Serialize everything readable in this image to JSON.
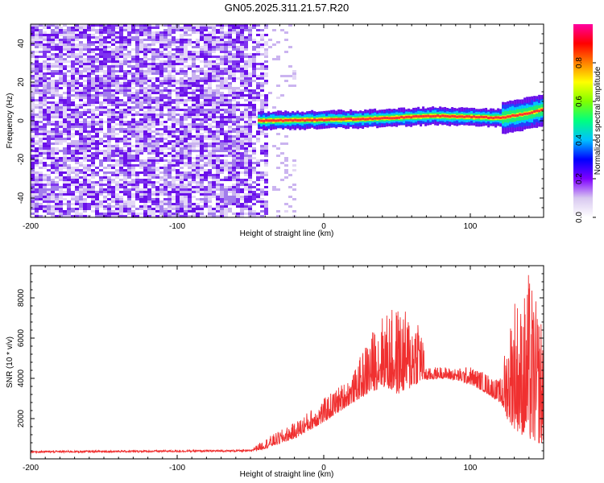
{
  "chart_data": [
    {
      "type": "heatmap",
      "title": "GN05.2025.311.21.57.R20",
      "xlabel": "Height of straight line (km)",
      "ylabel": "Frequency (Hz)",
      "xlim": [
        -200,
        150
      ],
      "ylim": [
        -50,
        50
      ],
      "x_ticks": [
        -200,
        -100,
        0,
        100
      ],
      "x_tick_labels": [
        "-200",
        "-100",
        "0",
        "100"
      ],
      "y_ticks": [
        -40,
        -20,
        0,
        20,
        40
      ],
      "y_tick_labels": [
        "-40",
        "-20",
        "0",
        "20",
        "40"
      ],
      "ridge": {
        "description": "dominant frequency track",
        "x": [
          -45,
          0,
          30,
          60,
          75,
          120,
          140,
          150
        ],
        "frequency": [
          0,
          0.5,
          1,
          2,
          2.5,
          1.5,
          4,
          6
        ]
      },
      "noise_region_x": [
        -200,
        -40
      ],
      "colorbar": {
        "label": "Normalized spectral amplitude",
        "range": [
          0,
          1
        ],
        "ticks": [
          0.0,
          0.2,
          0.4,
          0.6,
          0.8
        ],
        "tick_labels": [
          "0.0",
          "0.2",
          "0.4",
          "0.6",
          "0.8"
        ],
        "colors": [
          "#ffffff",
          "#d8c8f0",
          "#7f00ff",
          "#0000ff",
          "#00c0ff",
          "#00ff80",
          "#80ff00",
          "#ffff00",
          "#ff8000",
          "#ff0000",
          "#ff00a0"
        ]
      }
    },
    {
      "type": "line",
      "xlabel": "Height of straight line (km)",
      "ylabel": "SNR (10 * v/v)",
      "xlim": [
        -200,
        150
      ],
      "ylim": [
        0,
        9600
      ],
      "x_ticks": [
        -200,
        -100,
        0,
        100
      ],
      "x_tick_labels": [
        "-200",
        "-100",
        "0",
        "100"
      ],
      "y_ticks": [
        2000,
        4000,
        6000,
        8000
      ],
      "y_tick_labels": [
        "2000",
        "4000",
        "6000",
        "8000"
      ],
      "color": "#f03030",
      "envelope": {
        "x": [
          -200,
          -50,
          -40,
          -20,
          0,
          20,
          30,
          40,
          50,
          60,
          65,
          70,
          80,
          90,
          100,
          110,
          120,
          125,
          130,
          135,
          140,
          145,
          150
        ],
        "lower": [
          300,
          350,
          500,
          1000,
          1800,
          2800,
          3200,
          3600,
          3200,
          3500,
          3800,
          3900,
          4000,
          3900,
          3700,
          3300,
          2800,
          2000,
          1500,
          1200,
          900,
          800,
          700
        ],
        "upper": [
          400,
          450,
          1000,
          1800,
          3000,
          4200,
          6000,
          7200,
          7600,
          7200,
          7500,
          4500,
          4600,
          4500,
          4600,
          4300,
          3900,
          6000,
          8500,
          7700,
          9400,
          7800,
          7000
        ]
      }
    }
  ]
}
